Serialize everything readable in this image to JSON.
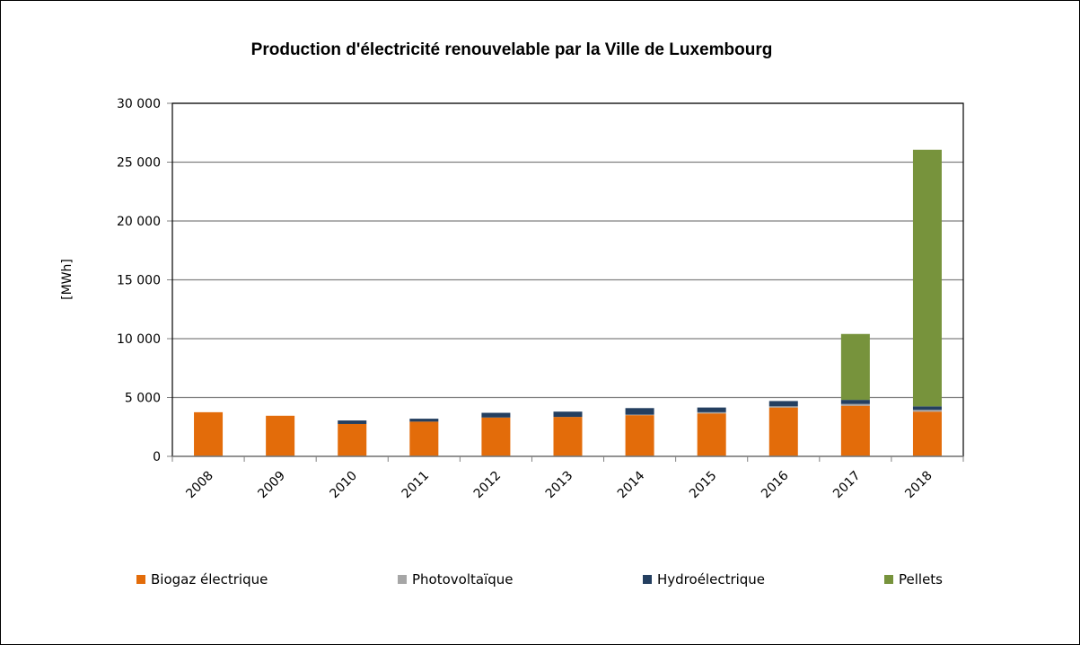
{
  "chart_data": {
    "type": "bar",
    "stacked": true,
    "title": "Production d'électricité renouvelable par la Ville de Luxembourg",
    "ylabel": "[MWh]",
    "xlabel": "",
    "ylim": [
      0,
      30000
    ],
    "yticks": [
      0,
      5000,
      10000,
      15000,
      20000,
      25000,
      30000
    ],
    "ytick_labels": [
      "0",
      "5 000",
      "10 000",
      "15 000",
      "20 000",
      "25 000",
      "30 000"
    ],
    "grid": true,
    "legend_position": "bottom",
    "categories": [
      "2008",
      "2009",
      "2010",
      "2011",
      "2012",
      "2013",
      "2014",
      "2015",
      "2016",
      "2017",
      "2018"
    ],
    "series": [
      {
        "name": "Biogaz électrique",
        "color": "#E36C0A",
        "values": [
          3750,
          3450,
          2750,
          2950,
          3300,
          3350,
          3500,
          3650,
          4150,
          4300,
          3800
        ]
      },
      {
        "name": "Photovoltaïque",
        "color": "#A6A6A6",
        "values": [
          0,
          0,
          0,
          0,
          0,
          0,
          50,
          100,
          100,
          150,
          150
        ]
      },
      {
        "name": "Hydroélectrique",
        "color": "#243F60",
        "values": [
          0,
          0,
          300,
          250,
          400,
          450,
          550,
          400,
          450,
          350,
          300
        ]
      },
      {
        "name": "Pellets",
        "color": "#77933C",
        "values": [
          0,
          0,
          0,
          0,
          0,
          0,
          0,
          0,
          0,
          5600,
          21800
        ]
      }
    ]
  }
}
